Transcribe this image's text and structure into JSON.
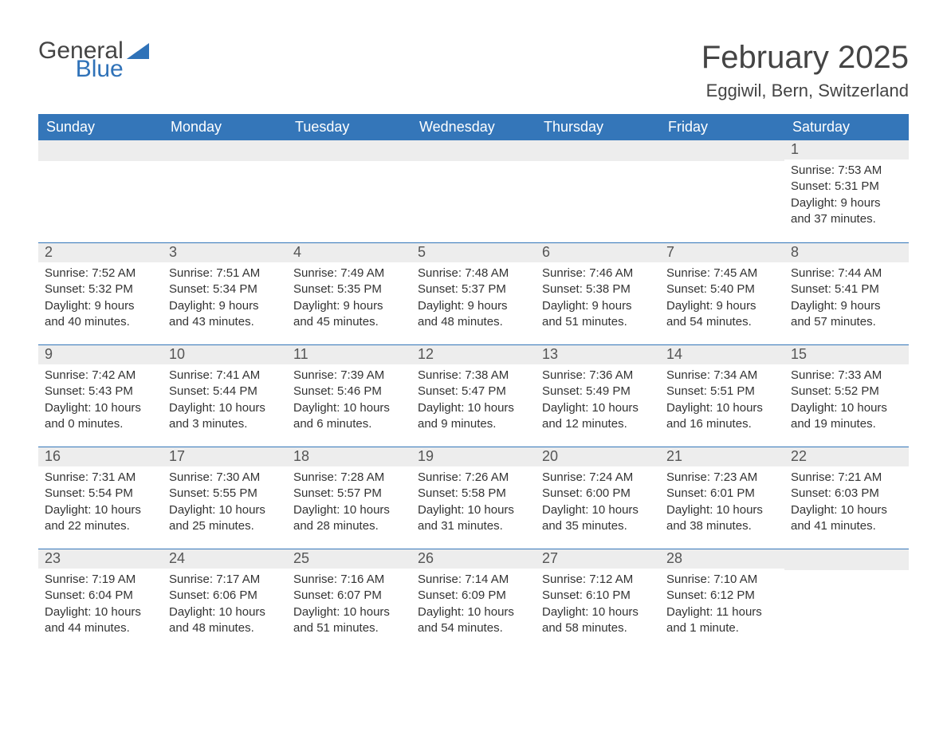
{
  "brand": {
    "word1": "General",
    "word2": "Blue"
  },
  "title": "February 2025",
  "location": "Eggiwil, Bern, Switzerland",
  "colors": {
    "header_bg": "#3476b9",
    "header_text": "#ffffff",
    "daynum_bg": "#ededed",
    "daynum_text": "#555555",
    "body_text": "#333333",
    "rule": "#3476b9",
    "brand_blue": "#2f72b8",
    "brand_gray": "#444444",
    "page_bg": "#ffffff"
  },
  "typography": {
    "title_fontsize": 40,
    "location_fontsize": 22,
    "weekday_fontsize": 18,
    "daynum_fontsize": 18,
    "body_fontsize": 15,
    "logo_fontsize": 30
  },
  "weekdays": [
    "Sunday",
    "Monday",
    "Tuesday",
    "Wednesday",
    "Thursday",
    "Friday",
    "Saturday"
  ],
  "weeks": [
    [
      null,
      null,
      null,
      null,
      null,
      null,
      {
        "n": "1",
        "sunrise": "Sunrise: 7:53 AM",
        "sunset": "Sunset: 5:31 PM",
        "d1": "Daylight: 9 hours",
        "d2": "and 37 minutes."
      }
    ],
    [
      {
        "n": "2",
        "sunrise": "Sunrise: 7:52 AM",
        "sunset": "Sunset: 5:32 PM",
        "d1": "Daylight: 9 hours",
        "d2": "and 40 minutes."
      },
      {
        "n": "3",
        "sunrise": "Sunrise: 7:51 AM",
        "sunset": "Sunset: 5:34 PM",
        "d1": "Daylight: 9 hours",
        "d2": "and 43 minutes."
      },
      {
        "n": "4",
        "sunrise": "Sunrise: 7:49 AM",
        "sunset": "Sunset: 5:35 PM",
        "d1": "Daylight: 9 hours",
        "d2": "and 45 minutes."
      },
      {
        "n": "5",
        "sunrise": "Sunrise: 7:48 AM",
        "sunset": "Sunset: 5:37 PM",
        "d1": "Daylight: 9 hours",
        "d2": "and 48 minutes."
      },
      {
        "n": "6",
        "sunrise": "Sunrise: 7:46 AM",
        "sunset": "Sunset: 5:38 PM",
        "d1": "Daylight: 9 hours",
        "d2": "and 51 minutes."
      },
      {
        "n": "7",
        "sunrise": "Sunrise: 7:45 AM",
        "sunset": "Sunset: 5:40 PM",
        "d1": "Daylight: 9 hours",
        "d2": "and 54 minutes."
      },
      {
        "n": "8",
        "sunrise": "Sunrise: 7:44 AM",
        "sunset": "Sunset: 5:41 PM",
        "d1": "Daylight: 9 hours",
        "d2": "and 57 minutes."
      }
    ],
    [
      {
        "n": "9",
        "sunrise": "Sunrise: 7:42 AM",
        "sunset": "Sunset: 5:43 PM",
        "d1": "Daylight: 10 hours",
        "d2": "and 0 minutes."
      },
      {
        "n": "10",
        "sunrise": "Sunrise: 7:41 AM",
        "sunset": "Sunset: 5:44 PM",
        "d1": "Daylight: 10 hours",
        "d2": "and 3 minutes."
      },
      {
        "n": "11",
        "sunrise": "Sunrise: 7:39 AM",
        "sunset": "Sunset: 5:46 PM",
        "d1": "Daylight: 10 hours",
        "d2": "and 6 minutes."
      },
      {
        "n": "12",
        "sunrise": "Sunrise: 7:38 AM",
        "sunset": "Sunset: 5:47 PM",
        "d1": "Daylight: 10 hours",
        "d2": "and 9 minutes."
      },
      {
        "n": "13",
        "sunrise": "Sunrise: 7:36 AM",
        "sunset": "Sunset: 5:49 PM",
        "d1": "Daylight: 10 hours",
        "d2": "and 12 minutes."
      },
      {
        "n": "14",
        "sunrise": "Sunrise: 7:34 AM",
        "sunset": "Sunset: 5:51 PM",
        "d1": "Daylight: 10 hours",
        "d2": "and 16 minutes."
      },
      {
        "n": "15",
        "sunrise": "Sunrise: 7:33 AM",
        "sunset": "Sunset: 5:52 PM",
        "d1": "Daylight: 10 hours",
        "d2": "and 19 minutes."
      }
    ],
    [
      {
        "n": "16",
        "sunrise": "Sunrise: 7:31 AM",
        "sunset": "Sunset: 5:54 PM",
        "d1": "Daylight: 10 hours",
        "d2": "and 22 minutes."
      },
      {
        "n": "17",
        "sunrise": "Sunrise: 7:30 AM",
        "sunset": "Sunset: 5:55 PM",
        "d1": "Daylight: 10 hours",
        "d2": "and 25 minutes."
      },
      {
        "n": "18",
        "sunrise": "Sunrise: 7:28 AM",
        "sunset": "Sunset: 5:57 PM",
        "d1": "Daylight: 10 hours",
        "d2": "and 28 minutes."
      },
      {
        "n": "19",
        "sunrise": "Sunrise: 7:26 AM",
        "sunset": "Sunset: 5:58 PM",
        "d1": "Daylight: 10 hours",
        "d2": "and 31 minutes."
      },
      {
        "n": "20",
        "sunrise": "Sunrise: 7:24 AM",
        "sunset": "Sunset: 6:00 PM",
        "d1": "Daylight: 10 hours",
        "d2": "and 35 minutes."
      },
      {
        "n": "21",
        "sunrise": "Sunrise: 7:23 AM",
        "sunset": "Sunset: 6:01 PM",
        "d1": "Daylight: 10 hours",
        "d2": "and 38 minutes."
      },
      {
        "n": "22",
        "sunrise": "Sunrise: 7:21 AM",
        "sunset": "Sunset: 6:03 PM",
        "d1": "Daylight: 10 hours",
        "d2": "and 41 minutes."
      }
    ],
    [
      {
        "n": "23",
        "sunrise": "Sunrise: 7:19 AM",
        "sunset": "Sunset: 6:04 PM",
        "d1": "Daylight: 10 hours",
        "d2": "and 44 minutes."
      },
      {
        "n": "24",
        "sunrise": "Sunrise: 7:17 AM",
        "sunset": "Sunset: 6:06 PM",
        "d1": "Daylight: 10 hours",
        "d2": "and 48 minutes."
      },
      {
        "n": "25",
        "sunrise": "Sunrise: 7:16 AM",
        "sunset": "Sunset: 6:07 PM",
        "d1": "Daylight: 10 hours",
        "d2": "and 51 minutes."
      },
      {
        "n": "26",
        "sunrise": "Sunrise: 7:14 AM",
        "sunset": "Sunset: 6:09 PM",
        "d1": "Daylight: 10 hours",
        "d2": "and 54 minutes."
      },
      {
        "n": "27",
        "sunrise": "Sunrise: 7:12 AM",
        "sunset": "Sunset: 6:10 PM",
        "d1": "Daylight: 10 hours",
        "d2": "and 58 minutes."
      },
      {
        "n": "28",
        "sunrise": "Sunrise: 7:10 AM",
        "sunset": "Sunset: 6:12 PM",
        "d1": "Daylight: 11 hours",
        "d2": "and 1 minute."
      },
      null
    ]
  ]
}
